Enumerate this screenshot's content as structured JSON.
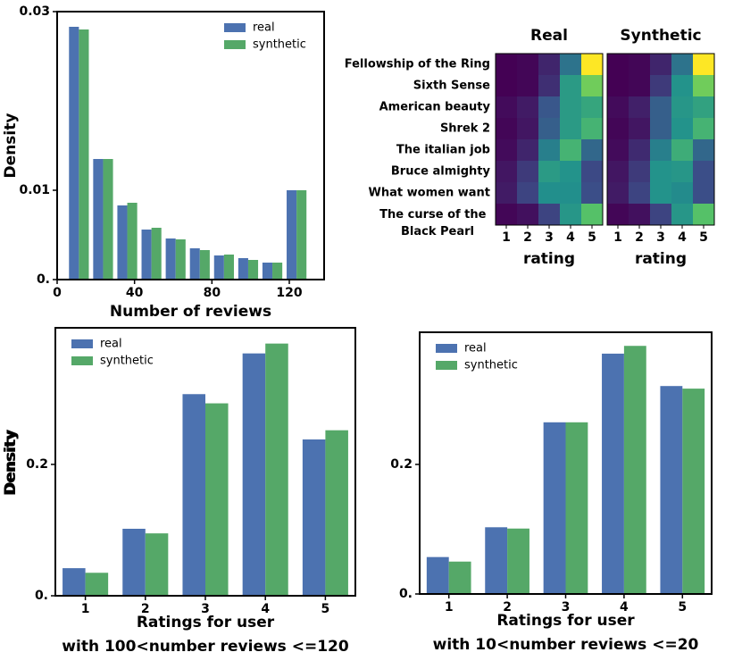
{
  "chart_data": [
    {
      "type": "histogram",
      "xlabel": "Number of reviews",
      "ylabel": "Density",
      "bins": [
        5,
        17.5,
        30,
        42.5,
        55,
        67.5,
        80,
        92.5,
        105,
        117.5,
        130
      ],
      "series": [
        {
          "name": "real",
          "color": "#4c72b0",
          "values": [
            0.0283,
            0.0135,
            0.0083,
            0.0056,
            0.0046,
            0.0035,
            0.0027,
            0.0024,
            0.0019,
            0.01
          ]
        },
        {
          "name": "synthetic",
          "color": "#55a868",
          "values": [
            0.028,
            0.0135,
            0.0086,
            0.0058,
            0.0045,
            0.0033,
            0.0028,
            0.0022,
            0.0019,
            0.01
          ]
        }
      ],
      "xlim": [
        0,
        138
      ],
      "xticks": [
        0,
        40,
        80,
        120
      ],
      "ylim": [
        0,
        0.03
      ],
      "yticks": [
        {
          "value": 0,
          "label": "0."
        },
        0.01,
        0.03
      ],
      "legend": "upper right"
    },
    {
      "type": "heatmap",
      "xlabel": "rating",
      "categories": [
        1,
        2,
        3,
        4,
        5
      ],
      "rows": [
        "Fellowship of the Ring",
        "Sixth Sense",
        "American beauty",
        "Shrek 2",
        "The italian job",
        "Bruce almighty",
        "What women want",
        "The curse of the Black Pearl"
      ],
      "colormap": "viridis",
      "panels": [
        {
          "title": "Real",
          "z": [
            [
              0.01,
              0.02,
              0.08,
              0.25,
              0.64
            ],
            [
              0.01,
              0.02,
              0.1,
              0.35,
              0.5
            ],
            [
              0.03,
              0.06,
              0.18,
              0.35,
              0.38
            ],
            [
              0.02,
              0.05,
              0.2,
              0.35,
              0.42
            ],
            [
              0.03,
              0.08,
              0.28,
              0.42,
              0.22
            ],
            [
              0.05,
              0.12,
              0.35,
              0.33,
              0.15
            ],
            [
              0.06,
              0.14,
              0.32,
              0.32,
              0.16
            ],
            [
              0.02,
              0.04,
              0.14,
              0.34,
              0.46
            ]
          ]
        },
        {
          "title": "Synthetic",
          "z": [
            [
              0.01,
              0.02,
              0.08,
              0.25,
              0.64
            ],
            [
              0.01,
              0.02,
              0.12,
              0.33,
              0.5
            ],
            [
              0.03,
              0.07,
              0.2,
              0.34,
              0.37
            ],
            [
              0.02,
              0.05,
              0.2,
              0.33,
              0.42
            ],
            [
              0.03,
              0.09,
              0.28,
              0.4,
              0.22
            ],
            [
              0.05,
              0.12,
              0.33,
              0.34,
              0.16
            ],
            [
              0.06,
              0.14,
              0.33,
              0.31,
              0.16
            ],
            [
              0.02,
              0.04,
              0.14,
              0.34,
              0.46
            ]
          ]
        }
      ]
    },
    {
      "type": "bar",
      "xlabel": [
        "Ratings for user",
        "with 100<number reviews <=120"
      ],
      "ylabel": "Density",
      "categories": [
        1,
        2,
        3,
        4,
        5
      ],
      "series": [
        {
          "name": "real",
          "color": "#4c72b0",
          "values": [
            0.042,
            0.102,
            0.307,
            0.369,
            0.238
          ]
        },
        {
          "name": "synthetic",
          "color": "#55a868",
          "values": [
            0.035,
            0.095,
            0.293,
            0.384,
            0.252
          ]
        }
      ],
      "ylim": [
        0,
        0.408
      ],
      "yticks": [
        {
          "value": 0,
          "label": "0."
        },
        0.2
      ],
      "legend": "upper left"
    },
    {
      "type": "bar",
      "xlabel": [
        "Ratings for user",
        "with 10<number reviews <=20"
      ],
      "ylabel": "Density",
      "categories": [
        1,
        2,
        3,
        4,
        5
      ],
      "series": [
        {
          "name": "real",
          "color": "#4c72b0",
          "values": [
            0.057,
            0.103,
            0.265,
            0.371,
            0.321
          ]
        },
        {
          "name": "synthetic",
          "color": "#55a868",
          "values": [
            0.05,
            0.101,
            0.265,
            0.383,
            0.317
          ]
        }
      ],
      "ylim": [
        0,
        0.404
      ],
      "yticks": [
        {
          "value": 0,
          "label": "0."
        },
        0.2
      ],
      "legend": "upper left"
    }
  ]
}
